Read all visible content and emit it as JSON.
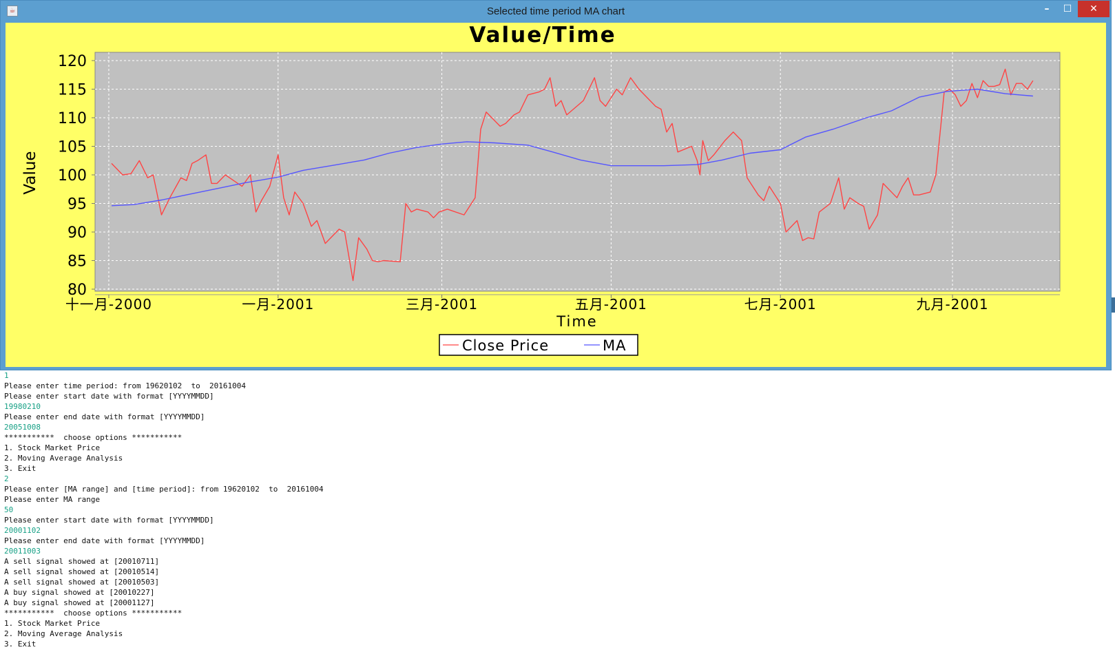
{
  "window": {
    "title": "Selected time period MA chart",
    "icon": "java-icon",
    "controls": {
      "minimize": "–",
      "maximize": "☐",
      "close": "✕"
    }
  },
  "chart_data": {
    "type": "line",
    "title": "Value/Time",
    "xlabel": "Time",
    "ylabel": "Value",
    "ylim": [
      80,
      121
    ],
    "yticks": [
      80,
      85,
      90,
      95,
      100,
      105,
      110,
      115,
      120
    ],
    "xrange": [
      "2000-11-02",
      "2001-10-03"
    ],
    "xticks": [
      {
        "date": "2000-11-01",
        "label": "十一月-2000"
      },
      {
        "date": "2001-01-01",
        "label": "一月-2001"
      },
      {
        "date": "2001-03-01",
        "label": "三月-2001"
      },
      {
        "date": "2001-05-01",
        "label": "五月-2001"
      },
      {
        "date": "2001-07-01",
        "label": "七月-2001"
      },
      {
        "date": "2001-09-01",
        "label": "九月-2001"
      }
    ],
    "background": "#c0c0c0",
    "panel_background": "#ffff66",
    "grid": true,
    "legend": "bottom",
    "series": [
      {
        "name": "Close Price",
        "color": "#ff4444",
        "points": [
          [
            "2000-11-02",
            102
          ],
          [
            "2000-11-06",
            100
          ],
          [
            "2000-11-09",
            100.2
          ],
          [
            "2000-11-12",
            102.5
          ],
          [
            "2000-11-15",
            99.5
          ],
          [
            "2000-11-17",
            100
          ],
          [
            "2000-11-20",
            93
          ],
          [
            "2000-11-23",
            96
          ],
          [
            "2000-11-27",
            99.5
          ],
          [
            "2000-11-29",
            99
          ],
          [
            "2000-12-01",
            102
          ],
          [
            "2000-12-03",
            102.5
          ],
          [
            "2000-12-06",
            103.5
          ],
          [
            "2000-12-08",
            98.5
          ],
          [
            "2000-12-10",
            98.5
          ],
          [
            "2000-12-13",
            100
          ],
          [
            "2000-12-16",
            99
          ],
          [
            "2000-12-19",
            98
          ],
          [
            "2000-12-22",
            100
          ],
          [
            "2000-12-24",
            93.5
          ],
          [
            "2000-12-26",
            95.5
          ],
          [
            "2000-12-29",
            98
          ],
          [
            "2001-01-01",
            103.5
          ],
          [
            "2001-01-03",
            96
          ],
          [
            "2001-01-05",
            93
          ],
          [
            "2001-01-07",
            97
          ],
          [
            "2001-01-10",
            95
          ],
          [
            "2001-01-13",
            91
          ],
          [
            "2001-01-15",
            92
          ],
          [
            "2001-01-18",
            88
          ],
          [
            "2001-01-23",
            90.5
          ],
          [
            "2001-01-25",
            90
          ],
          [
            "2001-01-28",
            81.5
          ],
          [
            "2001-01-30",
            89
          ],
          [
            "2001-02-02",
            87
          ],
          [
            "2001-02-04",
            85
          ],
          [
            "2001-02-06",
            84.8
          ],
          [
            "2001-02-08",
            85
          ],
          [
            "2001-02-14",
            84.8
          ],
          [
            "2001-02-16",
            95
          ],
          [
            "2001-02-18",
            93.5
          ],
          [
            "2001-02-20",
            94
          ],
          [
            "2001-02-24",
            93.5
          ],
          [
            "2001-02-26",
            92.5
          ],
          [
            "2001-02-28",
            93.5
          ],
          [
            "2001-03-03",
            94
          ],
          [
            "2001-03-09",
            93
          ],
          [
            "2001-03-13",
            96
          ],
          [
            "2001-03-15",
            108
          ],
          [
            "2001-03-17",
            111
          ],
          [
            "2001-03-22",
            108.5
          ],
          [
            "2001-03-24",
            109
          ],
          [
            "2001-03-27",
            110.5
          ],
          [
            "2001-03-29",
            111
          ],
          [
            "2001-04-01",
            114
          ],
          [
            "2001-04-05",
            114.5
          ],
          [
            "2001-04-07",
            115
          ],
          [
            "2001-04-09",
            117
          ],
          [
            "2001-04-11",
            112
          ],
          [
            "2001-04-13",
            113
          ],
          [
            "2001-04-15",
            110.5
          ],
          [
            "2001-04-21",
            113
          ],
          [
            "2001-04-25",
            117
          ],
          [
            "2001-04-27",
            113
          ],
          [
            "2001-04-29",
            112
          ],
          [
            "2001-05-03",
            115
          ],
          [
            "2001-05-05",
            114
          ],
          [
            "2001-05-08",
            117
          ],
          [
            "2001-05-11",
            115
          ],
          [
            "2001-05-17",
            112
          ],
          [
            "2001-05-19",
            111.5
          ],
          [
            "2001-05-21",
            107.5
          ],
          [
            "2001-05-23",
            109
          ],
          [
            "2001-05-25",
            104
          ],
          [
            "2001-05-30",
            105
          ],
          [
            "2001-06-01",
            102.5
          ],
          [
            "2001-06-02",
            100
          ],
          [
            "2001-06-03",
            106
          ],
          [
            "2001-06-05",
            102.5
          ],
          [
            "2001-06-07",
            103.5
          ],
          [
            "2001-06-11",
            106
          ],
          [
            "2001-06-14",
            107.5
          ],
          [
            "2001-06-17",
            106
          ],
          [
            "2001-06-19",
            99.5
          ],
          [
            "2001-06-23",
            96.5
          ],
          [
            "2001-06-25",
            95.5
          ],
          [
            "2001-06-27",
            98
          ],
          [
            "2001-06-29",
            96.5
          ],
          [
            "2001-07-01",
            95
          ],
          [
            "2001-07-03",
            90
          ],
          [
            "2001-07-07",
            92
          ],
          [
            "2001-07-09",
            88.5
          ],
          [
            "2001-07-11",
            89
          ],
          [
            "2001-07-13",
            88.8
          ],
          [
            "2001-07-15",
            93.5
          ],
          [
            "2001-07-19",
            95
          ],
          [
            "2001-07-22",
            99.5
          ],
          [
            "2001-07-24",
            94
          ],
          [
            "2001-07-26",
            96
          ],
          [
            "2001-07-29",
            95
          ],
          [
            "2001-07-31",
            94.5
          ],
          [
            "2001-08-02",
            90.5
          ],
          [
            "2001-08-05",
            93
          ],
          [
            "2001-08-07",
            98.5
          ],
          [
            "2001-08-09",
            97.5
          ],
          [
            "2001-08-12",
            96
          ],
          [
            "2001-08-14",
            98
          ],
          [
            "2001-08-16",
            99.5
          ],
          [
            "2001-08-18",
            96.5
          ],
          [
            "2001-08-20",
            96.5
          ],
          [
            "2001-08-24",
            97
          ],
          [
            "2001-08-26",
            100
          ],
          [
            "2001-08-29",
            114.5
          ],
          [
            "2001-08-31",
            115
          ],
          [
            "2001-09-02",
            114
          ],
          [
            "2001-09-04",
            112
          ],
          [
            "2001-09-06",
            113
          ],
          [
            "2001-09-08",
            116
          ],
          [
            "2001-09-10",
            113.5
          ],
          [
            "2001-09-12",
            116.5
          ],
          [
            "2001-09-14",
            115.5
          ],
          [
            "2001-09-16",
            115.5
          ],
          [
            "2001-09-18",
            115.8
          ],
          [
            "2001-09-20",
            118.5
          ],
          [
            "2001-09-22",
            114
          ],
          [
            "2001-09-24",
            116
          ],
          [
            "2001-09-26",
            116
          ],
          [
            "2001-09-28",
            115
          ],
          [
            "2001-09-30",
            116.5
          ]
        ]
      },
      {
        "name": "MA",
        "color": "#5555ff",
        "points": [
          [
            "2000-11-02",
            94.6
          ],
          [
            "2000-11-10",
            94.8
          ],
          [
            "2000-11-20",
            95.6
          ],
          [
            "2000-11-30",
            96.6
          ],
          [
            "2000-12-10",
            97.6
          ],
          [
            "2000-12-20",
            98.6
          ],
          [
            "2001-01-01",
            99.6
          ],
          [
            "2001-01-10",
            100.8
          ],
          [
            "2001-01-20",
            101.6
          ],
          [
            "2001-02-01",
            102.6
          ],
          [
            "2001-02-10",
            103.8
          ],
          [
            "2001-02-20",
            104.8
          ],
          [
            "2001-03-01",
            105.4
          ],
          [
            "2001-03-10",
            105.8
          ],
          [
            "2001-03-20",
            105.6
          ],
          [
            "2001-04-01",
            105.2
          ],
          [
            "2001-04-10",
            104
          ],
          [
            "2001-04-20",
            102.6
          ],
          [
            "2001-05-01",
            101.6
          ],
          [
            "2001-05-10",
            101.6
          ],
          [
            "2001-05-20",
            101.6
          ],
          [
            "2001-06-01",
            101.8
          ],
          [
            "2001-06-10",
            102.6
          ],
          [
            "2001-06-20",
            103.8
          ],
          [
            "2001-07-01",
            104.4
          ],
          [
            "2001-07-10",
            106.6
          ],
          [
            "2001-07-20",
            108
          ],
          [
            "2001-08-01",
            110
          ],
          [
            "2001-08-10",
            111.2
          ],
          [
            "2001-08-20",
            113.6
          ],
          [
            "2001-08-30",
            114.6
          ],
          [
            "2001-09-10",
            115
          ],
          [
            "2001-09-20",
            114.2
          ],
          [
            "2001-09-30",
            113.8
          ]
        ]
      }
    ]
  },
  "console": {
    "lines": [
      {
        "text": "1",
        "input": true
      },
      {
        "text": "Please enter time period: from 19620102  to  20161004",
        "input": false
      },
      {
        "text": "Please enter start date with format [YYYYMMDD]",
        "input": false
      },
      {
        "text": "19980210",
        "input": true
      },
      {
        "text": "Please enter end date with format [YYYYMMDD]",
        "input": false
      },
      {
        "text": "20051008",
        "input": true
      },
      {
        "text": "***********  choose options ***********",
        "input": false
      },
      {
        "text": "1. Stock Market Price",
        "input": false
      },
      {
        "text": "2. Moving Average Analysis",
        "input": false
      },
      {
        "text": "3. Exit",
        "input": false
      },
      {
        "text": "2",
        "input": true
      },
      {
        "text": "Please enter [MA range] and [time period]: from 19620102  to  20161004",
        "input": false
      },
      {
        "text": "Please enter MA range",
        "input": false
      },
      {
        "text": "50",
        "input": true
      },
      {
        "text": "Please enter start date with format [YYYYMMDD]",
        "input": false
      },
      {
        "text": "20001102",
        "input": true
      },
      {
        "text": "Please enter end date with format [YYYYMMDD]",
        "input": false
      },
      {
        "text": "20011003",
        "input": true
      },
      {
        "text": "A sell signal showed at [20010711]",
        "input": false
      },
      {
        "text": "A sell signal showed at [20010514]",
        "input": false
      },
      {
        "text": "A sell signal showed at [20010503]",
        "input": false
      },
      {
        "text": "A buy signal showed at [20010227]",
        "input": false
      },
      {
        "text": "A buy signal showed at [20001127]",
        "input": false
      },
      {
        "text": "***********  choose options ***********",
        "input": false
      },
      {
        "text": "1. Stock Market Price",
        "input": false
      },
      {
        "text": "2. Moving Average Analysis",
        "input": false
      },
      {
        "text": "3. Exit",
        "input": false
      }
    ]
  }
}
